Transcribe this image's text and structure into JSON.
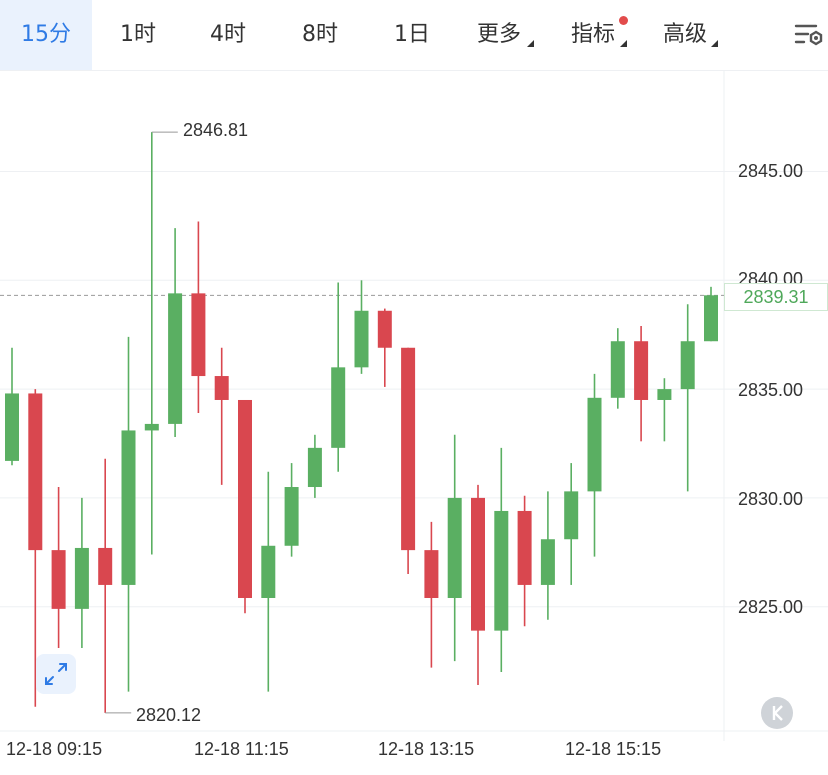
{
  "tabs": [
    {
      "label": "15分",
      "active": true
    },
    {
      "label": "1时"
    },
    {
      "label": "4时"
    },
    {
      "label": "8时"
    },
    {
      "label": "1日"
    },
    {
      "label": "更多",
      "dropdown": true
    },
    {
      "label": "指标",
      "dropdown": true,
      "badge": true
    },
    {
      "label": "高级",
      "dropdown": true
    }
  ],
  "settings_icon": "chart-settings-icon",
  "colors": {
    "up": "#5aaf62",
    "down": "#d9474f",
    "accent": "#2f7be5",
    "grid": "#eef0f3"
  },
  "current_price": "2839.31",
  "chart_data": {
    "type": "candlestick",
    "y_ticks": [
      "2845.00",
      "2840.00",
      "2835.00",
      "2830.00",
      "2825.00"
    ],
    "x_labels": [
      "12-18 09:15",
      "12-18 11:15",
      "12-18 13:15",
      "12-18 15:15"
    ],
    "high_label": "2846.81",
    "low_label": "2820.12",
    "ylim": [
      2819.4,
      2848.6
    ],
    "candles": [
      {
        "o": 2831.7,
        "c": 2834.8,
        "h": 2836.9,
        "l": 2831.5
      },
      {
        "o": 2834.8,
        "c": 2827.6,
        "h": 2835.0,
        "l": 2820.4
      },
      {
        "o": 2827.6,
        "c": 2824.9,
        "h": 2830.5,
        "l": 2823.1
      },
      {
        "o": 2824.9,
        "c": 2827.7,
        "h": 2830.0,
        "l": 2823.1
      },
      {
        "o": 2827.7,
        "c": 2826.0,
        "h": 2831.8,
        "l": 2820.12
      },
      {
        "o": 2826.0,
        "c": 2833.1,
        "h": 2837.4,
        "l": 2821.1
      },
      {
        "o": 2833.1,
        "c": 2833.4,
        "h": 2846.81,
        "l": 2827.4
      },
      {
        "o": 2833.4,
        "c": 2839.4,
        "h": 2842.4,
        "l": 2832.8
      },
      {
        "o": 2839.4,
        "c": 2835.6,
        "h": 2842.7,
        "l": 2833.9
      },
      {
        "o": 2835.6,
        "c": 2834.5,
        "h": 2836.9,
        "l": 2830.6
      },
      {
        "o": 2834.5,
        "c": 2825.4,
        "h": 2834.5,
        "l": 2824.7
      },
      {
        "o": 2825.4,
        "c": 2827.8,
        "h": 2831.2,
        "l": 2821.1
      },
      {
        "o": 2827.8,
        "c": 2830.5,
        "h": 2831.6,
        "l": 2827.3
      },
      {
        "o": 2830.5,
        "c": 2832.3,
        "h": 2832.9,
        "l": 2830.0
      },
      {
        "o": 2832.3,
        "c": 2836.0,
        "h": 2839.9,
        "l": 2831.2
      },
      {
        "o": 2836.0,
        "c": 2838.6,
        "h": 2840.0,
        "l": 2835.7
      },
      {
        "o": 2838.6,
        "c": 2836.9,
        "h": 2838.7,
        "l": 2835.1
      },
      {
        "o": 2836.9,
        "c": 2827.6,
        "h": 2836.9,
        "l": 2826.5
      },
      {
        "o": 2827.6,
        "c": 2825.4,
        "h": 2828.9,
        "l": 2822.2
      },
      {
        "o": 2825.4,
        "c": 2830.0,
        "h": 2832.9,
        "l": 2822.5
      },
      {
        "o": 2830.0,
        "c": 2823.9,
        "h": 2830.6,
        "l": 2821.4
      },
      {
        "o": 2823.9,
        "c": 2829.4,
        "h": 2832.3,
        "l": 2822.0
      },
      {
        "o": 2829.4,
        "c": 2826.0,
        "h": 2830.1,
        "l": 2824.1
      },
      {
        "o": 2826.0,
        "c": 2828.1,
        "h": 2830.3,
        "l": 2824.4
      },
      {
        "o": 2828.1,
        "c": 2830.3,
        "h": 2831.6,
        "l": 2826.0
      },
      {
        "o": 2830.3,
        "c": 2834.6,
        "h": 2835.7,
        "l": 2827.3
      },
      {
        "o": 2834.6,
        "c": 2837.2,
        "h": 2837.8,
        "l": 2834.1
      },
      {
        "o": 2837.2,
        "c": 2834.5,
        "h": 2837.9,
        "l": 2832.6
      },
      {
        "o": 2834.5,
        "c": 2835.0,
        "h": 2835.5,
        "l": 2832.6
      },
      {
        "o": 2835.0,
        "c": 2837.2,
        "h": 2838.9,
        "l": 2830.3
      },
      {
        "o": 2837.2,
        "c": 2839.31,
        "h": 2839.7,
        "l": 2837.2
      }
    ]
  }
}
